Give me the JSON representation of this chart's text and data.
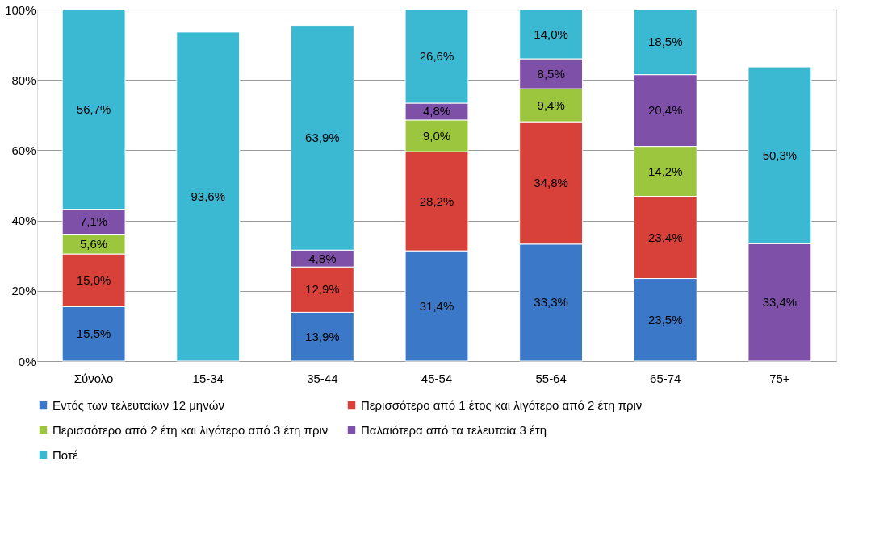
{
  "chart_data": {
    "type": "bar",
    "stacked": true,
    "categories": [
      "Σύνολο",
      "15-34",
      "35-44",
      "45-54",
      "55-64",
      "65-74",
      "75+"
    ],
    "series": [
      {
        "name": "Εντός των τελευταίων 12 μηνών",
        "color": "#3b78c8",
        "values": [
          15.5,
          null,
          13.9,
          31.4,
          33.3,
          23.5,
          null
        ],
        "value_labels": [
          "15,5%",
          null,
          "13,9%",
          "31,4%",
          "33,3%",
          "23,5%",
          null
        ]
      },
      {
        "name": "Περισσότερο από 1 έτος και λιγότερο από 2 έτη πριν",
        "color": "#d8403a",
        "values": [
          15.0,
          null,
          12.9,
          28.2,
          34.8,
          23.4,
          null
        ],
        "value_labels": [
          "15,0%",
          null,
          "12,9%",
          "28,2%",
          "34,8%",
          "23,4%",
          null
        ]
      },
      {
        "name": "Περισσότερο από 2 έτη και λιγότερο από 3 έτη πριν",
        "color": "#9cc63e",
        "values": [
          5.6,
          null,
          null,
          9.0,
          9.4,
          14.2,
          null
        ],
        "value_labels": [
          "5,6%",
          null,
          null,
          "9,0%",
          "9,4%",
          "14,2%",
          null
        ]
      },
      {
        "name": "Παλαιότερα από τα τελευταία 3 έτη",
        "color": "#7e50a8",
        "values": [
          7.1,
          null,
          4.8,
          4.8,
          8.5,
          20.4,
          33.4
        ],
        "value_labels": [
          "7,1%",
          null,
          "4,8%",
          "4,8%",
          "8,5%",
          "20,4%",
          "33,4%"
        ]
      },
      {
        "name": "Ποτέ",
        "color": "#3cb9d2",
        "values": [
          56.7,
          93.6,
          63.9,
          26.6,
          14.0,
          18.5,
          50.3
        ],
        "value_labels": [
          "56,7%",
          "93,6%",
          "63,9%",
          "26,6%",
          "14,0%",
          "18,5%",
          "50,3%"
        ]
      }
    ],
    "ylim": [
      0,
      100
    ],
    "yticks": [
      {
        "value": 0,
        "label": "0%"
      },
      {
        "value": 20,
        "label": "20%"
      },
      {
        "value": 40,
        "label": "40%"
      },
      {
        "value": 60,
        "label": "60%"
      },
      {
        "value": 80,
        "label": "80%"
      },
      {
        "value": 100,
        "label": "100%"
      }
    ],
    "grid": "y",
    "legend": "bottom"
  }
}
